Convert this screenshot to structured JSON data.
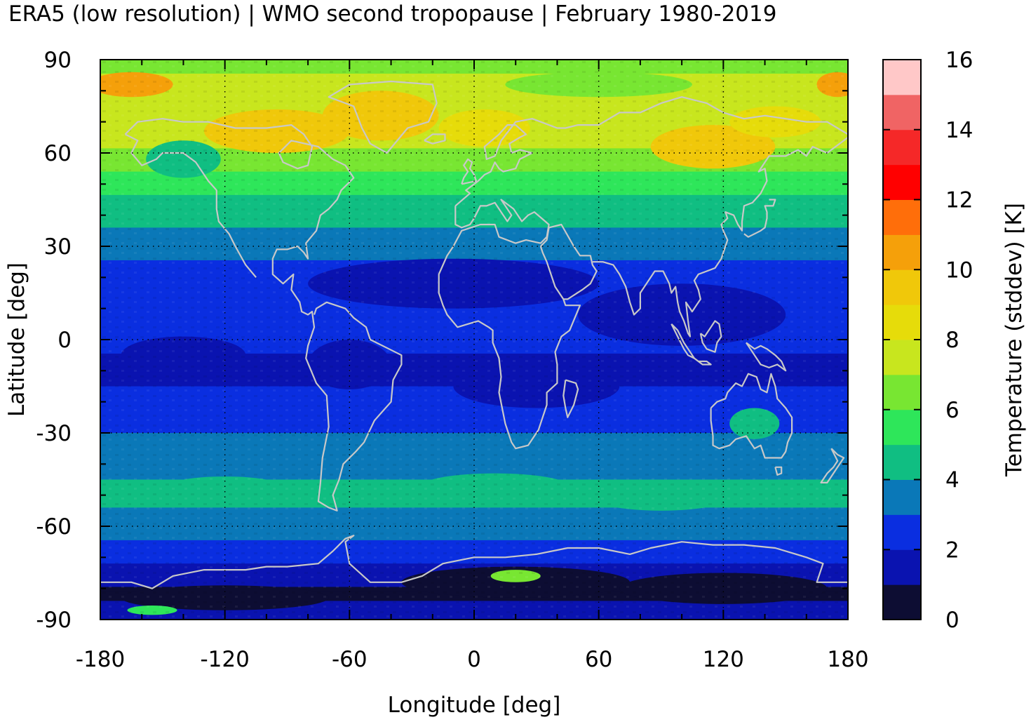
{
  "title": "ERA5 (low resolution) | WMO second tropopause | February 1980-2019",
  "map": {
    "xlabel": "Longitude [deg]",
    "ylabel": "Latitude [deg]",
    "xticks": [
      "-180",
      "-120",
      "-60",
      "0",
      "60",
      "120",
      "180"
    ],
    "yticks": [
      "90",
      "60",
      "30",
      "0",
      "-30",
      "-60",
      "-90"
    ],
    "xlim": [
      -180,
      180
    ],
    "ylim": [
      -90,
      90
    ],
    "grid": "dotted",
    "coastline_color": "#c8c8c8"
  },
  "colorbar": {
    "label": "Temperature (stddev) [K]",
    "ticks": [
      "0",
      "2",
      "4",
      "6",
      "8",
      "10",
      "12",
      "14",
      "16"
    ],
    "range": [
      0,
      16
    ],
    "colors": [
      "#0d0d33",
      "#0a13b0",
      "#0a2ee0",
      "#0a78b8",
      "#10be82",
      "#2ee65a",
      "#78e632",
      "#c8e61e",
      "#e6dc0a",
      "#f0c80a",
      "#f5a00a",
      "#ff6e0a",
      "#ff0000",
      "#f52828",
      "#f06464",
      "#ffc8c8"
    ]
  },
  "chart_data": {
    "type": "heatmap",
    "title": "ERA5 (low resolution) | WMO second tropopause | February 1980-2019",
    "xlabel": "Longitude [deg]",
    "ylabel": "Latitude [deg]",
    "xlim": [
      -180,
      180
    ],
    "ylim": [
      -90,
      90
    ],
    "colorbar_label": "Temperature (stddev) [K]",
    "colorbar_range": [
      0,
      16
    ],
    "zonal_profile": {
      "lat": [
        88,
        82,
        75,
        68,
        62,
        55,
        48,
        40,
        32,
        25,
        18,
        10,
        3,
        -5,
        -12,
        -20,
        -28,
        -35,
        -42,
        -50,
        -57,
        -64,
        -70,
        -76,
        -82,
        -88
      ],
      "value": [
        6.5,
        7.6,
        7.6,
        7.8,
        7.0,
        6.2,
        5.2,
        4.4,
        3.6,
        3.0,
        2.4,
        2.0,
        2.2,
        2.0,
        1.8,
        2.4,
        2.8,
        3.4,
        3.8,
        4.4,
        3.6,
        3.0,
        2.4,
        1.2,
        0.8,
        1.6
      ]
    }
  }
}
